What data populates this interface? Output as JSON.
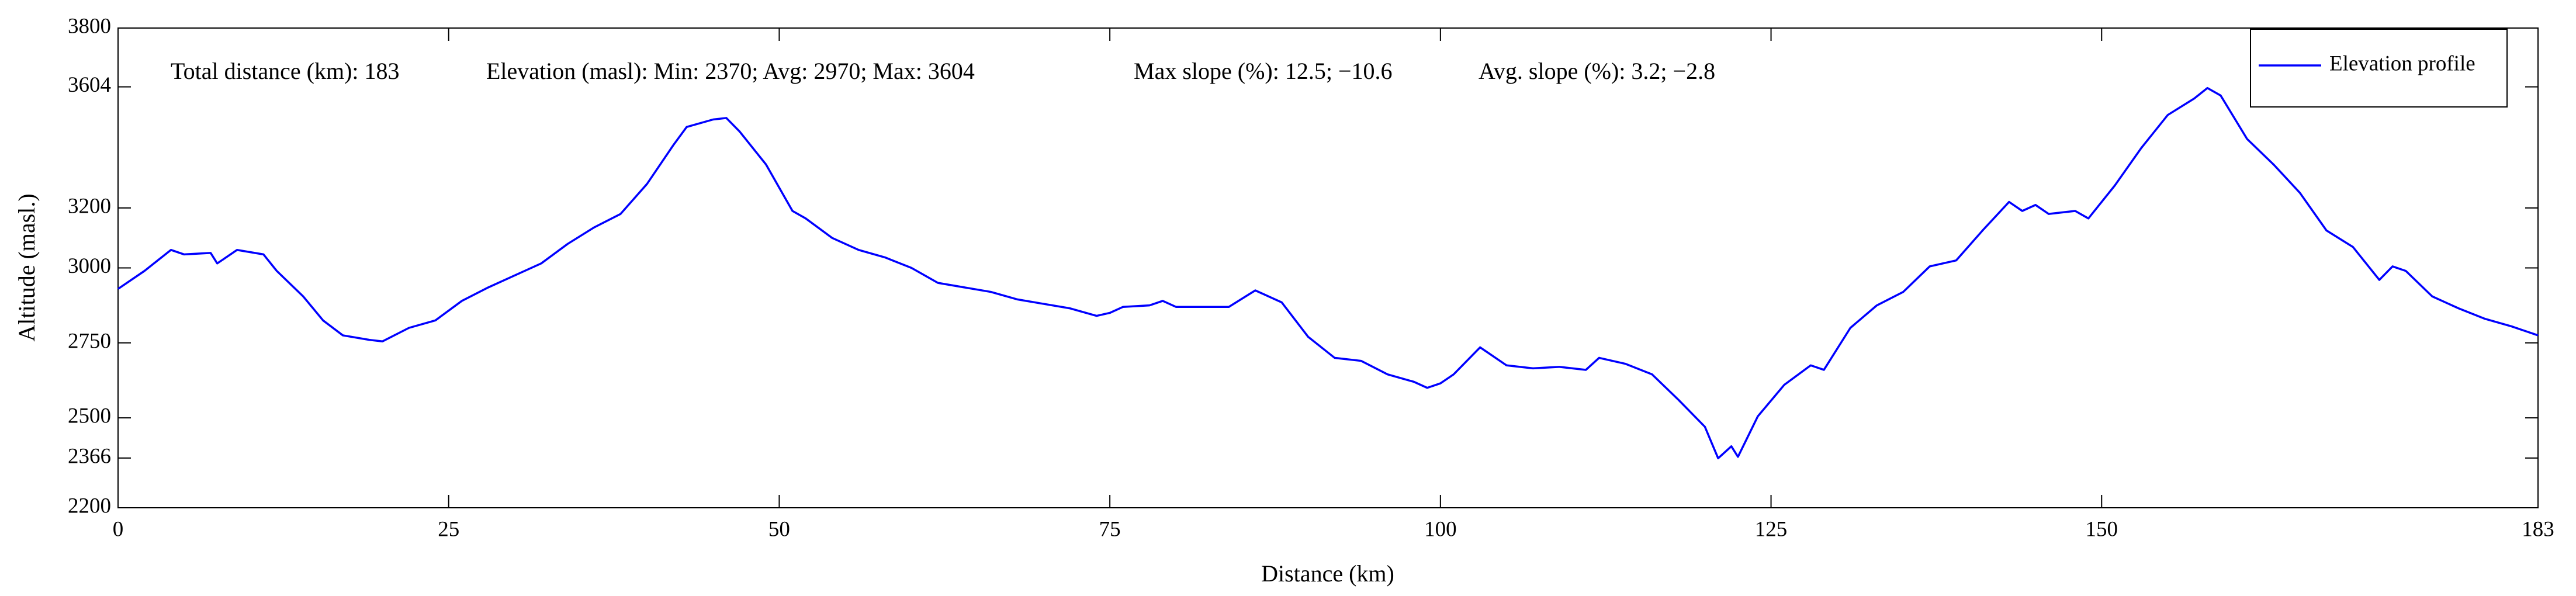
{
  "chart_data": {
    "type": "line",
    "xlabel": "Distance (km)",
    "ylabel": "Altitude (masl.)",
    "annotations": [
      "Total distance (km): 183",
      "Elevation (masl): Min: 2370; Avg: 2970; Max: 3604",
      "Max slope (%): 12.5; −10.6",
      "Avg. slope (%): 3.2; −2.8"
    ],
    "legend": "upper right",
    "xlim": [
      0,
      183
    ],
    "xticks": [
      0,
      25,
      50,
      75,
      100,
      125,
      150,
      183
    ],
    "ylim": [
      2200,
      3800
    ],
    "yticks": [
      2200,
      2366,
      2500,
      2750,
      3000,
      3200,
      3604,
      3800
    ],
    "x": [
      0,
      2,
      4,
      5,
      7,
      7.5,
      9,
      11,
      12,
      14,
      15.5,
      17,
      19,
      20,
      22,
      24,
      26,
      28,
      30,
      32,
      34,
      36,
      38,
      40,
      42,
      43,
      45,
      46,
      47,
      49,
      51,
      52,
      54,
      56,
      58,
      60,
      62,
      64,
      66,
      68,
      70,
      72,
      74,
      75,
      76,
      78,
      79,
      80,
      82,
      84,
      86,
      88,
      90,
      92,
      94,
      96,
      98,
      99,
      100,
      101,
      103,
      105,
      107,
      109,
      111,
      112,
      114,
      116,
      118,
      120,
      121,
      122,
      122.5,
      123,
      124,
      126,
      128,
      129,
      131,
      133,
      135,
      137,
      139,
      141,
      143,
      144,
      145,
      146,
      148,
      149,
      151,
      153,
      155,
      157,
      158,
      159,
      161,
      163,
      165,
      167,
      169,
      171,
      172,
      173,
      175,
      177,
      179,
      181,
      183
    ],
    "series": [
      {
        "name": "Elevation profile",
        "color": "#0000ff",
        "values": [
          2930,
          2990,
          3060,
          3045,
          3050,
          3015,
          3060,
          3045,
          2990,
          2905,
          2825,
          2775,
          2760,
          2755,
          2800,
          2825,
          2890,
          2935,
          2975,
          3015,
          3080,
          3135,
          3180,
          3280,
          3410,
          3470,
          3495,
          3500,
          3455,
          3345,
          3190,
          3165,
          3100,
          3060,
          3035,
          3000,
          2950,
          2935,
          2920,
          2895,
          2880,
          2865,
          2840,
          2850,
          2870,
          2875,
          2890,
          2870,
          2870,
          2870,
          2925,
          2885,
          2770,
          2700,
          2690,
          2645,
          2620,
          2600,
          2615,
          2645,
          2735,
          2675,
          2665,
          2670,
          2660,
          2700,
          2680,
          2645,
          2560,
          2470,
          2365,
          2405,
          2370,
          2415,
          2505,
          2610,
          2675,
          2660,
          2800,
          2875,
          2920,
          3005,
          3025,
          3125,
          3220,
          3190,
          3210,
          3180,
          3190,
          3165,
          3275,
          3400,
          3510,
          3565,
          3600,
          3575,
          3430,
          3345,
          3250,
          3125,
          3070,
          2960,
          3005,
          2990,
          2905,
          2865,
          2830,
          2805,
          2775
        ]
      }
    ]
  }
}
